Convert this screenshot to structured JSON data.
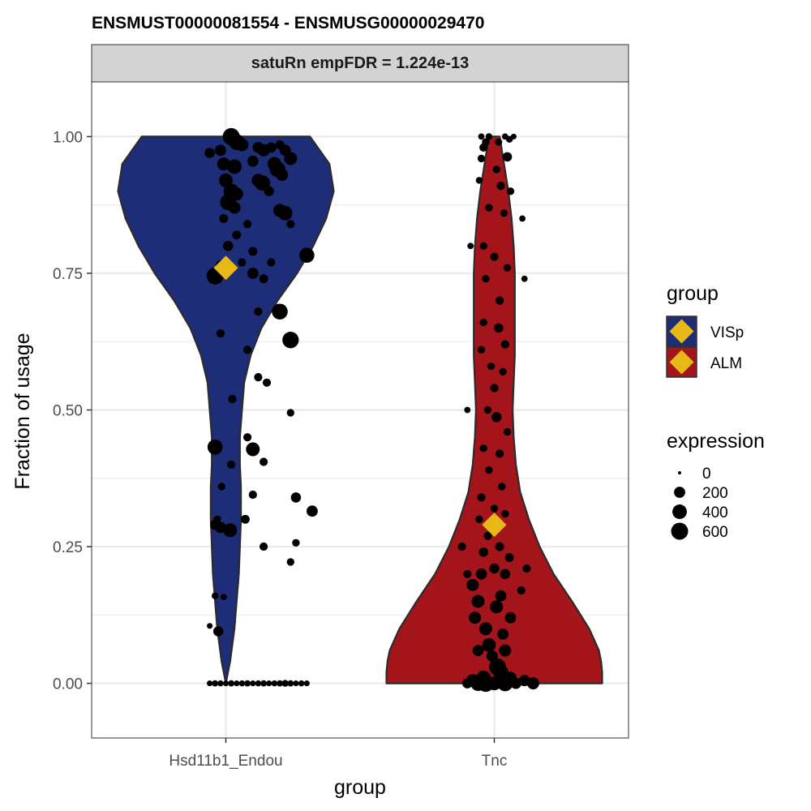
{
  "colors": {
    "VISp": "#1e2d78",
    "ALM": "#a3141b",
    "mean_marker": "#e8b817",
    "strip_bg": "#d3d3d3",
    "grid": "#ebebeb",
    "border": "#333333"
  },
  "chart_data": {
    "type": "violin",
    "title": "ENSMUST00000081554  -  ENSMUSG00000029470",
    "strip_label": "satuRn empFDR = 1.224e-13",
    "xlabel": "group",
    "ylabel": "Fraction of usage",
    "ylim": [
      -0.1,
      1.1
    ],
    "yticks": [
      0,
      0.25,
      0.5,
      0.75,
      1
    ],
    "ytick_labels": [
      "0.00",
      "0.25",
      "0.50",
      "0.75",
      "1.00"
    ],
    "categories": [
      "Hsd11b1_Endou",
      "Tnc"
    ],
    "grid": true,
    "legend": {
      "position": "right",
      "group_title": "group",
      "group_entries": [
        {
          "label": "VISp",
          "color_key": "VISp"
        },
        {
          "label": "ALM",
          "color_key": "ALM"
        }
      ],
      "size_title": "expression",
      "size_entries": [
        {
          "label": "0",
          "value": 0
        },
        {
          "label": "200",
          "value": 200
        },
        {
          "label": "400",
          "value": 400
        },
        {
          "label": "600",
          "value": 600
        }
      ]
    },
    "series": [
      {
        "category": "Hsd11b1_Endou",
        "group": "VISp",
        "mean": 0.76,
        "violin_profile": [
          [
            0.0,
            0.0
          ],
          [
            0.04,
            0.04
          ],
          [
            0.1,
            0.08
          ],
          [
            0.2,
            0.12
          ],
          [
            0.3,
            0.14
          ],
          [
            0.36,
            0.14
          ],
          [
            0.4,
            0.13
          ],
          [
            0.45,
            0.13
          ],
          [
            0.5,
            0.15
          ],
          [
            0.55,
            0.17
          ],
          [
            0.6,
            0.23
          ],
          [
            0.65,
            0.33
          ],
          [
            0.7,
            0.48
          ],
          [
            0.75,
            0.66
          ],
          [
            0.8,
            0.81
          ],
          [
            0.85,
            0.93
          ],
          [
            0.9,
            1.0
          ],
          [
            0.95,
            0.96
          ],
          [
            1.0,
            0.78
          ]
        ],
        "points": [
          [
            0.05,
            1.0,
            600
          ],
          [
            0.1,
            0.99,
            500
          ],
          [
            0.15,
            0.985,
            300
          ],
          [
            -0.05,
            0.975,
            200
          ],
          [
            -0.15,
            0.97,
            150
          ],
          [
            0.3,
            0.98,
            200
          ],
          [
            0.35,
            0.975,
            250
          ],
          [
            0.42,
            0.98,
            150
          ],
          [
            0.55,
            0.975,
            200
          ],
          [
            0.5,
            0.985,
            100
          ],
          [
            0.6,
            0.96,
            300
          ],
          [
            -0.02,
            0.95,
            300
          ],
          [
            0.08,
            0.945,
            400
          ],
          [
            0.25,
            0.955,
            200
          ],
          [
            0.45,
            0.95,
            350
          ],
          [
            0.48,
            0.94,
            500
          ],
          [
            0.52,
            0.93,
            250
          ],
          [
            0.0,
            0.92,
            350
          ],
          [
            0.3,
            0.92,
            300
          ],
          [
            0.34,
            0.915,
            450
          ],
          [
            0.05,
            0.9,
            450
          ],
          [
            0.1,
            0.895,
            300
          ],
          [
            0.4,
            0.9,
            150
          ],
          [
            0.02,
            0.88,
            500
          ],
          [
            0.08,
            0.87,
            250
          ],
          [
            0.5,
            0.865,
            300
          ],
          [
            0.55,
            0.86,
            400
          ],
          [
            -0.02,
            0.85,
            100
          ],
          [
            0.2,
            0.84,
            80
          ],
          [
            0.6,
            0.84,
            80
          ],
          [
            0.1,
            0.82,
            100
          ],
          [
            0.02,
            0.8,
            150
          ],
          [
            0.25,
            0.79,
            100
          ],
          [
            0.75,
            0.783,
            450
          ],
          [
            0.15,
            0.77,
            80
          ],
          [
            0.42,
            0.77,
            80
          ],
          [
            -0.1,
            0.745,
            600
          ],
          [
            -0.05,
            0.765,
            120
          ],
          [
            0.25,
            0.75,
            200
          ],
          [
            0.35,
            0.74,
            100
          ],
          [
            0.5,
            0.68,
            500
          ],
          [
            0.6,
            0.628,
            550
          ],
          [
            0.3,
            0.68,
            80
          ],
          [
            -0.05,
            0.64,
            80
          ],
          [
            0.2,
            0.61,
            80
          ],
          [
            0.3,
            0.56,
            80
          ],
          [
            0.38,
            0.55,
            80
          ],
          [
            0.06,
            0.52,
            80
          ],
          [
            0.6,
            0.495,
            60
          ],
          [
            -0.1,
            0.432,
            450
          ],
          [
            0.25,
            0.428,
            350
          ],
          [
            0.2,
            0.45,
            80
          ],
          [
            0.35,
            0.405,
            80
          ],
          [
            0.05,
            0.4,
            80
          ],
          [
            -0.04,
            0.36,
            60
          ],
          [
            0.25,
            0.345,
            80
          ],
          [
            0.65,
            0.34,
            150
          ],
          [
            0.8,
            0.315,
            200
          ],
          [
            -0.1,
            0.29,
            150
          ],
          [
            -0.05,
            0.285,
            200
          ],
          [
            -0.08,
            0.3,
            60
          ],
          [
            0.04,
            0.28,
            350
          ],
          [
            0.18,
            0.3,
            100
          ],
          [
            0.35,
            0.25,
            80
          ],
          [
            0.65,
            0.257,
            60
          ],
          [
            0.6,
            0.222,
            60
          ],
          [
            -0.1,
            0.16,
            40
          ],
          [
            -0.02,
            0.158,
            30
          ],
          [
            -0.15,
            0.105,
            20
          ],
          [
            -0.07,
            0.095,
            150
          ],
          [
            -0.15,
            0.0,
            20
          ],
          [
            -0.1,
            0.0,
            30
          ],
          [
            -0.05,
            0.0,
            25
          ],
          [
            0.0,
            0.0,
            20
          ],
          [
            0.05,
            0.0,
            30
          ],
          [
            0.1,
            0.0,
            20
          ],
          [
            0.15,
            0.0,
            25
          ],
          [
            0.2,
            0.0,
            30
          ],
          [
            0.25,
            0.0,
            20
          ],
          [
            0.3,
            0.0,
            25
          ],
          [
            0.35,
            0.0,
            30
          ],
          [
            0.4,
            0.0,
            20
          ],
          [
            0.45,
            0.0,
            25
          ],
          [
            0.5,
            0.0,
            30
          ],
          [
            0.55,
            0.0,
            40
          ],
          [
            0.6,
            0.0,
            30
          ],
          [
            0.65,
            0.0,
            20
          ],
          [
            0.7,
            0.0,
            25
          ],
          [
            0.75,
            0.0,
            20
          ]
        ]
      },
      {
        "category": "Tnc",
        "group": "ALM",
        "mean": 0.29,
        "violin_profile": [
          [
            0.0,
            1.0
          ],
          [
            0.02,
            1.0
          ],
          [
            0.04,
            0.99
          ],
          [
            0.06,
            0.97
          ],
          [
            0.1,
            0.88
          ],
          [
            0.15,
            0.72
          ],
          [
            0.2,
            0.55
          ],
          [
            0.25,
            0.42
          ],
          [
            0.3,
            0.32
          ],
          [
            0.35,
            0.24
          ],
          [
            0.4,
            0.2
          ],
          [
            0.45,
            0.18
          ],
          [
            0.5,
            0.17
          ],
          [
            0.55,
            0.18
          ],
          [
            0.6,
            0.19
          ],
          [
            0.65,
            0.19
          ],
          [
            0.7,
            0.19
          ],
          [
            0.75,
            0.19
          ],
          [
            0.8,
            0.18
          ],
          [
            0.85,
            0.16
          ],
          [
            0.9,
            0.13
          ],
          [
            0.95,
            0.09
          ],
          [
            1.0,
            0.05
          ]
        ],
        "points": [
          [
            -0.12,
            1.0,
            30
          ],
          [
            -0.1,
            0.98,
            80
          ],
          [
            -0.08,
            0.99,
            60
          ],
          [
            -0.05,
            1.0,
            40
          ],
          [
            0.1,
            1.0,
            30
          ],
          [
            0.14,
            0.995,
            40
          ],
          [
            0.18,
            1.0,
            20
          ],
          [
            0.04,
            0.99,
            50
          ],
          [
            -0.12,
            0.96,
            60
          ],
          [
            0.12,
            0.963,
            120
          ],
          [
            0.02,
            0.94,
            60
          ],
          [
            -0.14,
            0.92,
            40
          ],
          [
            0.06,
            0.91,
            80
          ],
          [
            0.15,
            0.9,
            60
          ],
          [
            -0.05,
            0.87,
            60
          ],
          [
            0.09,
            0.86,
            60
          ],
          [
            -0.1,
            0.8,
            60
          ],
          [
            0.0,
            0.78,
            80
          ],
          [
            0.12,
            0.76,
            60
          ],
          [
            -0.08,
            0.74,
            60
          ],
          [
            0.05,
            0.7,
            80
          ],
          [
            -0.1,
            0.66,
            60
          ],
          [
            0.04,
            0.65,
            120
          ],
          [
            0.1,
            0.62,
            80
          ],
          [
            -0.12,
            0.61,
            60
          ],
          [
            -0.03,
            0.58,
            60
          ],
          [
            0.08,
            0.57,
            60
          ],
          [
            0.0,
            0.54,
            80
          ],
          [
            -0.06,
            0.5,
            60
          ],
          [
            0.02,
            0.487,
            150
          ],
          [
            0.12,
            0.46,
            60
          ],
          [
            -0.1,
            0.43,
            60
          ],
          [
            0.05,
            0.42,
            80
          ],
          [
            -0.05,
            0.39,
            60
          ],
          [
            0.07,
            0.36,
            60
          ],
          [
            -0.12,
            0.34,
            80
          ],
          [
            0.0,
            0.32,
            60
          ],
          [
            -0.14,
            0.3,
            60
          ],
          [
            0.1,
            0.31,
            60
          ],
          [
            -0.06,
            0.27,
            80
          ],
          [
            0.05,
            0.25,
            100
          ],
          [
            -0.1,
            0.24,
            120
          ],
          [
            0.14,
            0.23,
            100
          ],
          [
            -0.12,
            0.2,
            200
          ],
          [
            0.0,
            0.21,
            150
          ],
          [
            0.1,
            0.2,
            150
          ],
          [
            -0.2,
            0.18,
            250
          ],
          [
            -0.15,
            0.15,
            300
          ],
          [
            0.06,
            0.16,
            200
          ],
          [
            0.02,
            0.14,
            300
          ],
          [
            -0.18,
            0.12,
            250
          ],
          [
            0.15,
            0.12,
            200
          ],
          [
            -0.08,
            0.1,
            300
          ],
          [
            -0.05,
            0.07,
            350
          ],
          [
            0.08,
            0.09,
            200
          ],
          [
            -0.15,
            0.06,
            200
          ],
          [
            0.1,
            0.06,
            250
          ],
          [
            -0.02,
            0.05,
            200
          ],
          [
            0.03,
            0.03,
            600
          ],
          [
            0.06,
            0.02,
            450
          ],
          [
            -0.1,
            0.01,
            400
          ],
          [
            0.15,
            0.01,
            250
          ],
          [
            -0.2,
            0.005,
            300
          ],
          [
            0.28,
            0.005,
            200
          ],
          [
            0.36,
            0.0,
            250
          ],
          [
            -0.15,
            0.0,
            450
          ],
          [
            0.0,
            0.0,
            350
          ],
          [
            0.1,
            0.0,
            500
          ],
          [
            0.2,
            0.0,
            200
          ],
          [
            -0.25,
            0.0,
            150
          ],
          [
            -0.08,
            0.0,
            600
          ],
          [
            0.05,
            0.005,
            300
          ],
          [
            -0.3,
            0.25,
            80
          ],
          [
            -0.25,
            0.2,
            80
          ],
          [
            0.3,
            0.21,
            80
          ],
          [
            0.25,
            0.17,
            80
          ],
          [
            -0.22,
            0.8,
            30
          ],
          [
            0.26,
            0.85,
            30
          ],
          [
            0.28,
            0.74,
            30
          ],
          [
            -0.25,
            0.5,
            30
          ]
        ]
      }
    ]
  }
}
